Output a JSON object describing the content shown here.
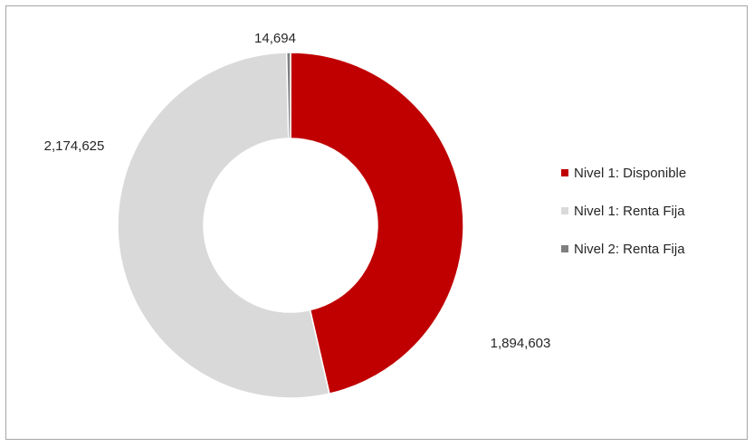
{
  "chart_data": {
    "type": "pie",
    "style": "donut",
    "title": "",
    "categories": [
      "Nivel 1: Disponible",
      "Nivel 1: Renta Fija",
      "Nivel 2: Renta Fija"
    ],
    "values": [
      1894603,
      2174625,
      14694
    ],
    "value_labels": [
      "1,894,603",
      "2,174,625",
      "14,694"
    ],
    "colors": [
      "#c00000",
      "#d9d9d9",
      "#7f7f7f"
    ],
    "legend_position": "right"
  }
}
